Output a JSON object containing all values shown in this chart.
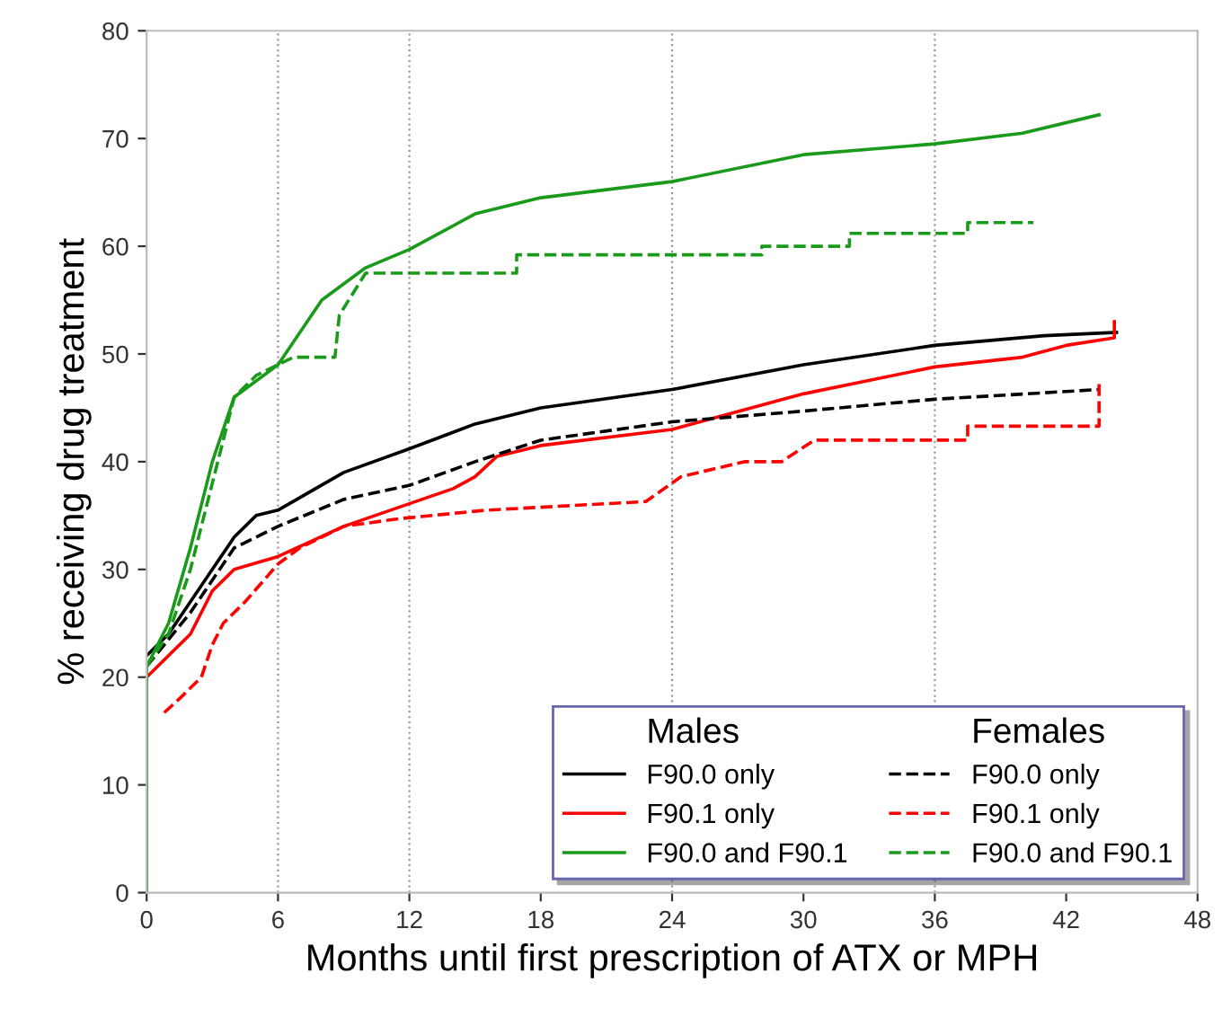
{
  "chart_data": {
    "type": "line",
    "xlabel": "Months until first prescription of ATX or MPH",
    "ylabel": "% receiving drug treatment",
    "xlim": [
      0,
      48
    ],
    "xticks": [
      0,
      6,
      12,
      18,
      24,
      30,
      36,
      42,
      48
    ],
    "ylim": [
      0,
      80
    ],
    "yticks": [
      0,
      10,
      20,
      30,
      40,
      50,
      60,
      70,
      80
    ],
    "grid": false,
    "legend": "bottom right",
    "annotations": [
      "Males",
      "Females"
    ],
    "ref_lines": [
      {
        "axis": "x",
        "value": 6,
        "color": "#999999",
        "line_style": "dotted"
      },
      {
        "axis": "x",
        "value": 12,
        "color": "#999999",
        "line_style": "dotted"
      },
      {
        "axis": "x",
        "value": 24,
        "color": "#999999",
        "line_style": "dotted"
      },
      {
        "axis": "x",
        "value": 36,
        "color": "#999999",
        "line_style": "dotted"
      }
    ],
    "series": [
      {
        "name": "F90.0 only",
        "color": "#000000",
        "line_style": "solid",
        "x": [
          0,
          1,
          2,
          3,
          4,
          5,
          6,
          9,
          12,
          15,
          18,
          24,
          30,
          36,
          41,
          44.3
        ],
        "values": [
          22,
          24,
          27,
          30,
          33,
          35,
          35.5,
          39,
          41.2,
          43.5,
          45,
          46.7,
          49,
          50.8,
          51.7,
          52
        ]
      },
      {
        "name": "F90.1 only",
        "color": "#ff0000",
        "line_style": "solid",
        "x": [
          0,
          1,
          2,
          3,
          4,
          6,
          9,
          12,
          14,
          15,
          16,
          18,
          24,
          30,
          36,
          40,
          42,
          44.2,
          44.2
        ],
        "values": [
          20,
          22,
          24,
          28,
          30,
          31.2,
          34,
          36.1,
          37.5,
          38.6,
          40.5,
          41.5,
          43,
          46.3,
          48.8,
          49.7,
          50.8,
          51.5,
          53
        ]
      },
      {
        "name": "F90.0 and F90.1",
        "color": "#1a9a1a",
        "line_style": "solid",
        "x": [
          0,
          0,
          1,
          2,
          3,
          4,
          6,
          8,
          10,
          12,
          15,
          18,
          24,
          30,
          36,
          40,
          43.5
        ],
        "values": [
          0,
          21,
          25,
          32,
          40,
          46,
          49,
          55,
          58,
          59.7,
          63,
          64.5,
          66,
          68.5,
          69.5,
          70.5,
          72.2
        ]
      },
      {
        "name": "F90.0 only",
        "color": "#000000",
        "line_style": "dashed",
        "x": [
          0,
          2,
          3,
          4,
          6,
          9,
          12,
          15,
          18,
          24,
          30,
          36,
          43.5,
          43.5
        ],
        "values": [
          21,
          26,
          29,
          32,
          34,
          36.5,
          37.8,
          40,
          42,
          43.7,
          44.7,
          45.8,
          46.7,
          46.7
        ]
      },
      {
        "name": "F90.1 only",
        "color": "#ff0000",
        "line_style": "dashed",
        "x": [
          0.8,
          1.5,
          2.5,
          3,
          3.5,
          4.5,
          6,
          7,
          9,
          11.5,
          15.5,
          22.8,
          24.4,
          27.3,
          29,
          30.5,
          37.5,
          37.5,
          43.5,
          43.5
        ],
        "values": [
          16.7,
          18,
          20,
          23,
          25,
          27,
          30.5,
          32,
          34,
          34.7,
          35.5,
          36.3,
          38.6,
          40,
          40,
          42,
          42,
          43.3,
          43.3,
          47.2
        ]
      },
      {
        "name": "F90.0 and F90.1",
        "color": "#1a9a1a",
        "line_style": "dashed",
        "x": [
          0,
          1,
          2,
          3,
          4,
          5,
          6,
          6.7,
          8.6,
          8.8,
          10,
          16.9,
          16.9,
          28.1,
          28.1,
          32.1,
          32.1,
          37.5,
          37.5,
          40.5
        ],
        "values": [
          21,
          24,
          30,
          38,
          46,
          48,
          49,
          49.7,
          49.7,
          53.6,
          57.5,
          57.5,
          59.2,
          59.2,
          60,
          60,
          61.2,
          61.2,
          62.2,
          62.2
        ]
      }
    ]
  }
}
